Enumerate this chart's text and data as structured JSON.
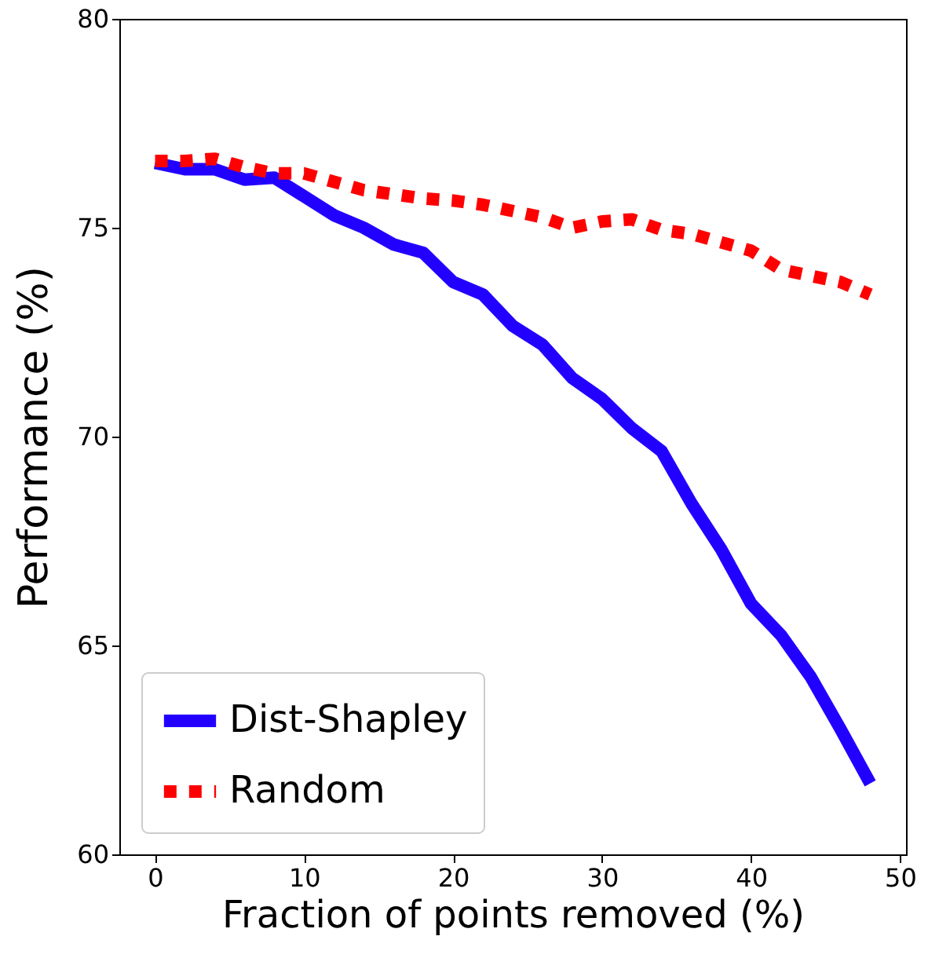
{
  "chart_data": {
    "type": "line",
    "xlabel": "Fraction of points removed (%)",
    "ylabel": "Performance (%)",
    "x": [
      0,
      2,
      4,
      6,
      8,
      10,
      12,
      14,
      16,
      18,
      20,
      22,
      24,
      26,
      28,
      30,
      32,
      34,
      36,
      38,
      40,
      42,
      44,
      46,
      48
    ],
    "series": [
      {
        "name": "Dist-Shapley",
        "color": "#2200ff",
        "line_style": "solid",
        "values": [
          76.55,
          76.4,
          76.4,
          76.15,
          76.2,
          75.75,
          75.3,
          75.0,
          74.6,
          74.4,
          73.7,
          73.4,
          72.65,
          72.2,
          71.4,
          70.9,
          70.2,
          69.65,
          68.4,
          67.3,
          66.0,
          65.25,
          64.25,
          63.0,
          61.7
        ]
      },
      {
        "name": "Random",
        "color": "#ff0000",
        "line_style": "dotted",
        "values": [
          76.6,
          76.6,
          76.65,
          76.45,
          76.3,
          76.3,
          76.1,
          75.9,
          75.8,
          75.7,
          75.65,
          75.55,
          75.4,
          75.25,
          75.0,
          75.15,
          75.2,
          74.95,
          74.85,
          74.65,
          74.45,
          74.0,
          73.85,
          73.7,
          73.4
        ]
      }
    ],
    "xlim": [
      -2.4,
      50.4
    ],
    "ylim": [
      60,
      80
    ],
    "xticks": [
      0,
      10,
      20,
      30,
      40,
      50
    ],
    "yticks": [
      60,
      65,
      70,
      75,
      80
    ],
    "grid": false,
    "legend": "bottom left",
    "marker": "none"
  }
}
